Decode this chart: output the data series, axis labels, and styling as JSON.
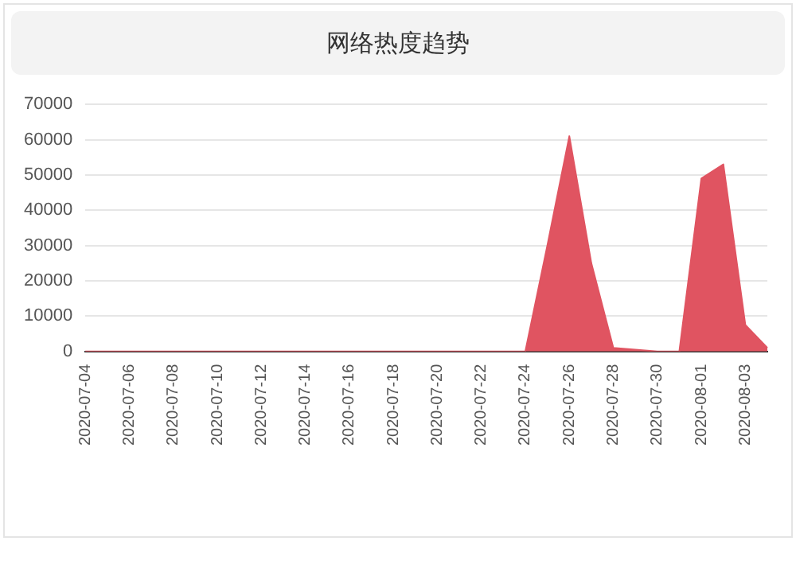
{
  "chart_data": {
    "type": "area",
    "title": "网络热度趋势",
    "categories": [
      "2020-07-04",
      null,
      "2020-07-06",
      null,
      "2020-07-08",
      null,
      "2020-07-10",
      null,
      "2020-07-12",
      null,
      "2020-07-14",
      null,
      "2020-07-16",
      null,
      "2020-07-18",
      null,
      "2020-07-20",
      null,
      "2020-07-22",
      null,
      "2020-07-24",
      null,
      "2020-07-26",
      null,
      "2020-07-28",
      null,
      "2020-07-30",
      null,
      "2020-08-01",
      null,
      "2020-08-03",
      null
    ],
    "series": [
      {
        "color": "#e05461",
        "values": [
          0,
          0,
          0,
          0,
          0,
          0,
          0,
          0,
          0,
          0,
          0,
          0,
          0,
          0,
          0,
          0,
          0,
          0,
          0,
          0,
          0,
          30000,
          61000,
          25000,
          1000,
          500,
          0,
          0,
          49000,
          53000,
          7500,
          1000
        ]
      }
    ],
    "ylim": [
      0,
      70000
    ],
    "yticks": [
      0,
      10000,
      20000,
      30000,
      40000,
      50000,
      60000,
      70000
    ],
    "grid": "y",
    "legend": false,
    "marker": "none"
  }
}
